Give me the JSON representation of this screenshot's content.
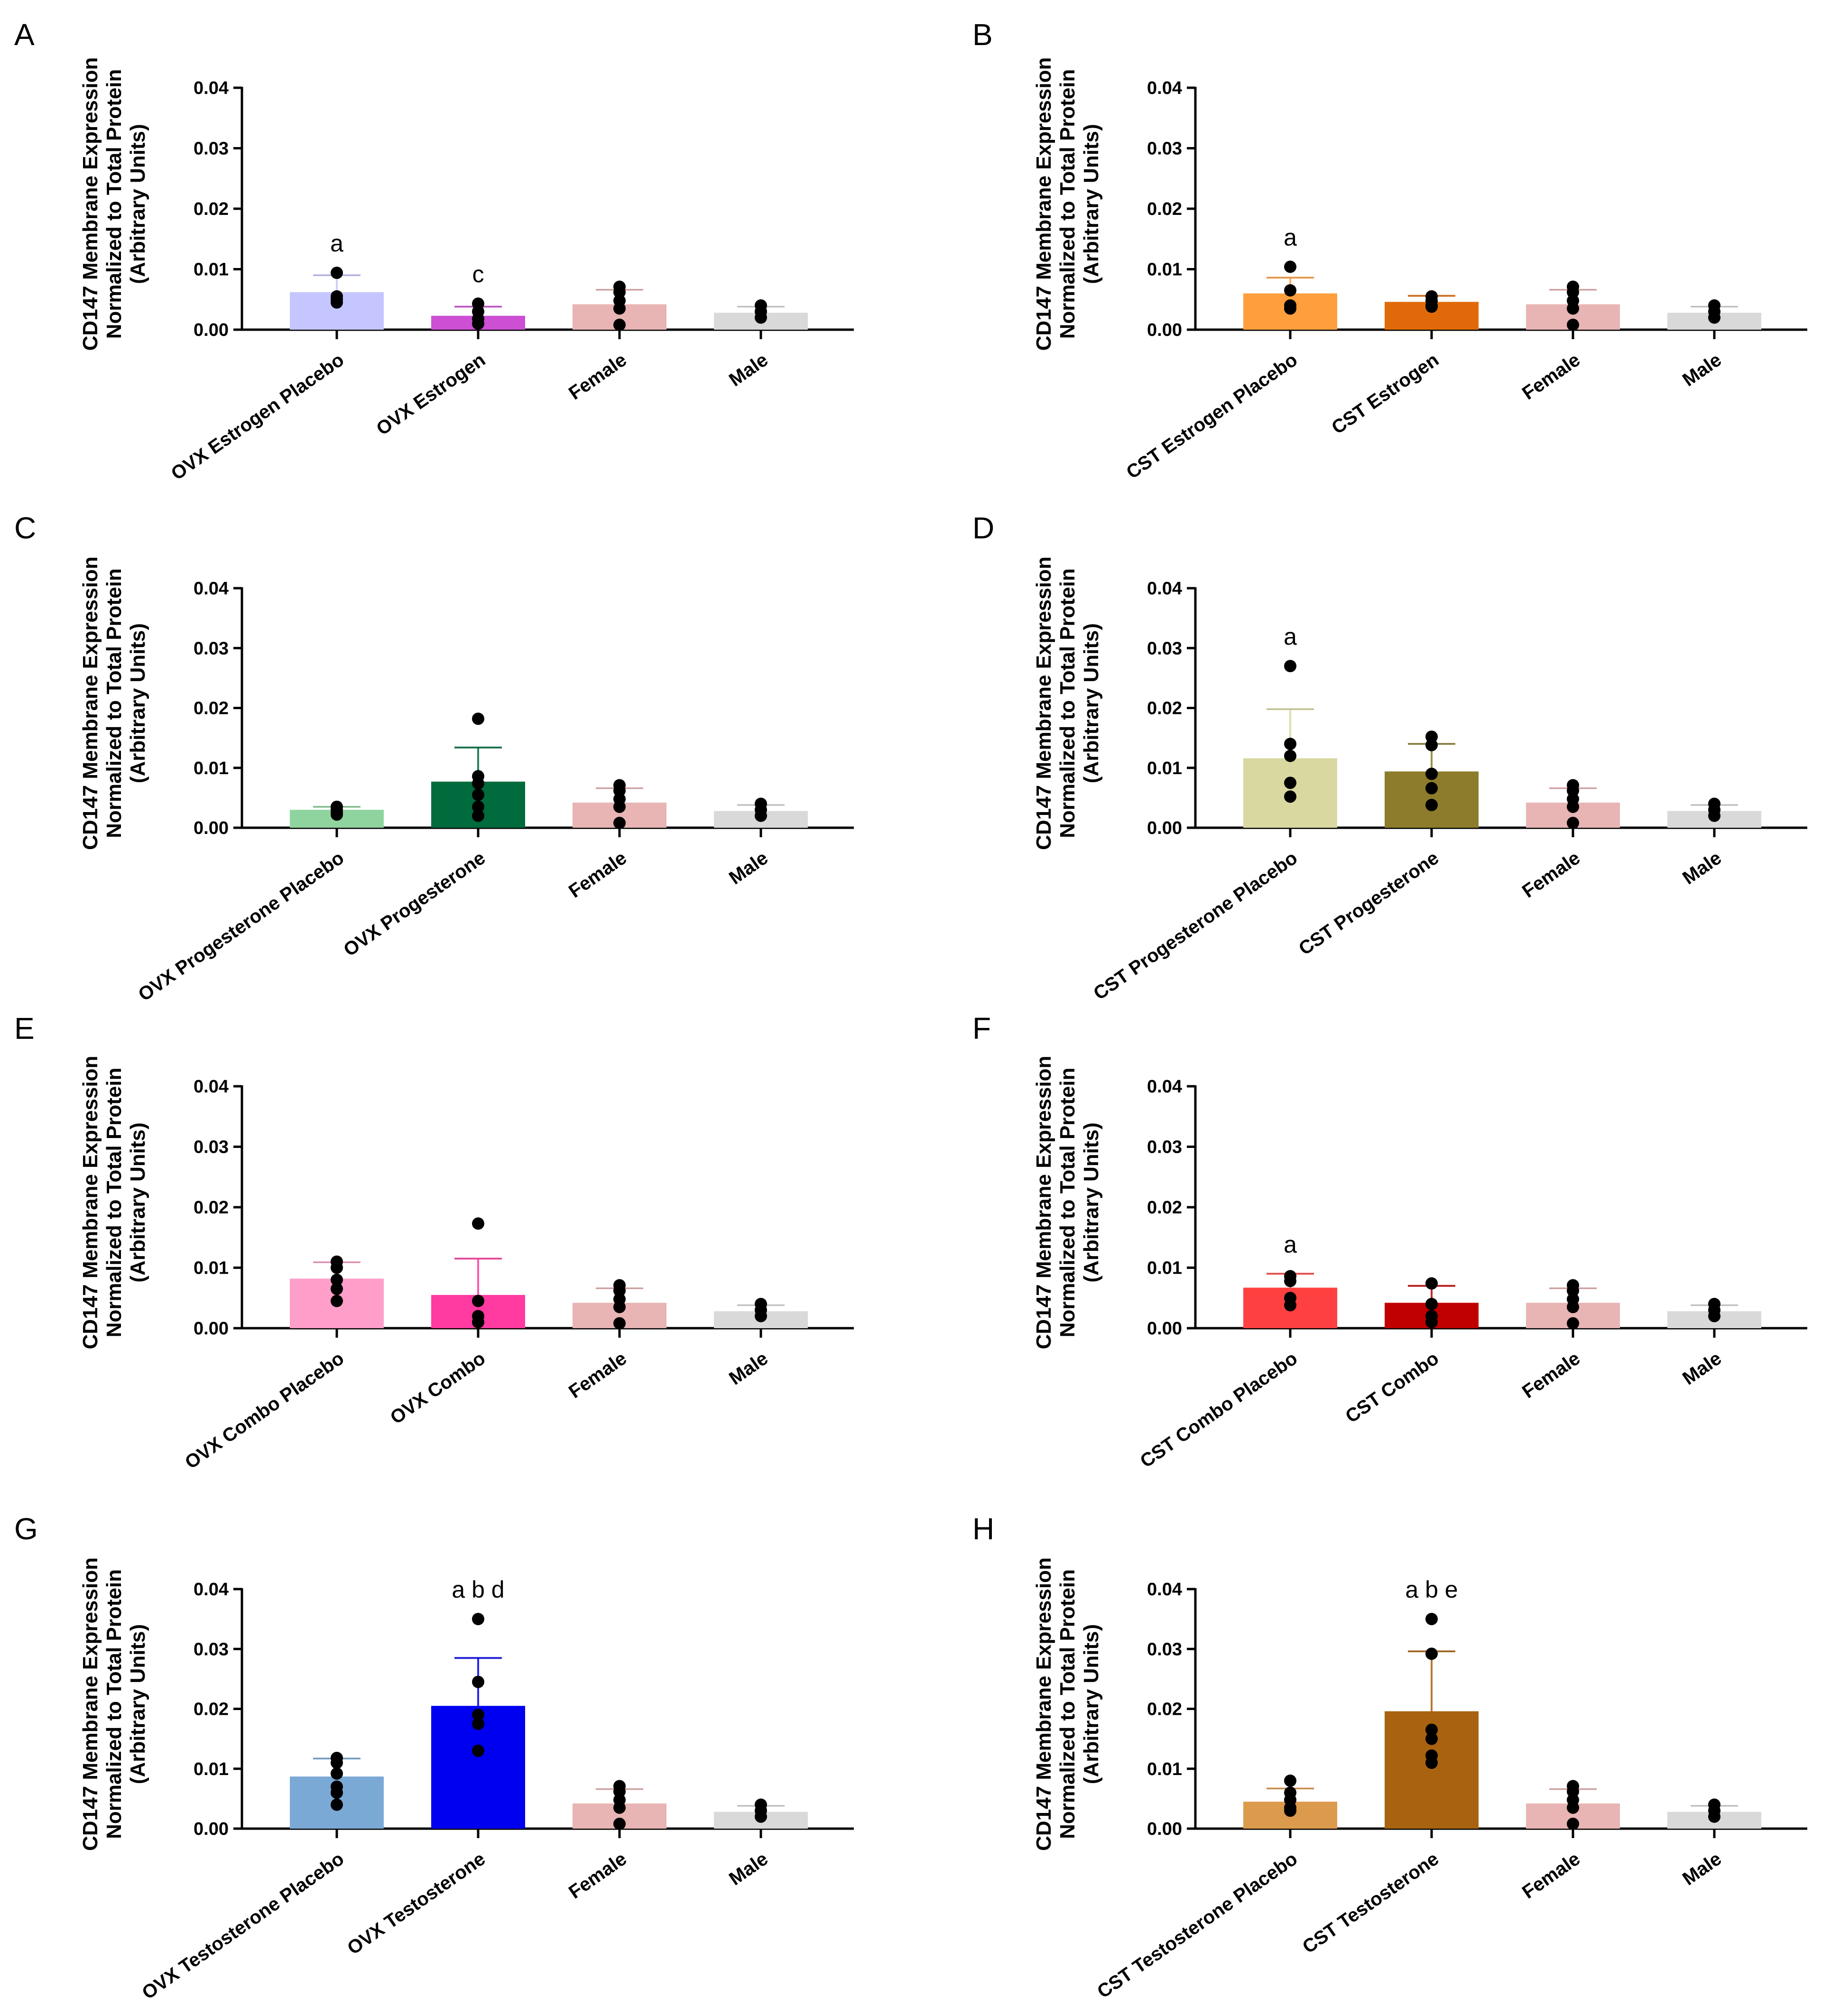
{
  "chart_data": [
    {
      "type": "bar",
      "panel": "A",
      "ylabel": [
        "CD147 Membrane Expression",
        "Normalized to Total Protein",
        "(Arbitrary Units)"
      ],
      "ylim": [
        0,
        0.04
      ],
      "yticks": [
        "0.00",
        "0.01",
        "0.02",
        "0.03",
        "0.04"
      ],
      "bars": [
        {
          "label": "OVX Estrogen Placebo",
          "mean": 0.0062,
          "err": 0.0028,
          "color": "#c5c6ff",
          "points": [
            0.0094,
            0.0055,
            0.0045,
            0.005
          ],
          "sig": "a"
        },
        {
          "label": "OVX Estrogen",
          "mean": 0.0023,
          "err": 0.0015,
          "color": "#cc4fd4",
          "points": [
            0.0043,
            0.003,
            0.001,
            0.0018
          ],
          "sig": "c"
        },
        {
          "label": "Female",
          "mean": 0.0042,
          "err": 0.0024,
          "color": "#e8b4b4",
          "points": [
            0.0071,
            0.0062,
            0.0048,
            0.0035,
            0.0008
          ],
          "sig": ""
        },
        {
          "label": "Male",
          "mean": 0.0028,
          "err": 0.001,
          "color": "#d9d9d9",
          "points": [
            0.004,
            0.003,
            0.002
          ],
          "sig": ""
        }
      ]
    },
    {
      "type": "bar",
      "panel": "B",
      "ylabel": [
        "CD147 Membrane Expression",
        "Normalized to Total Protein",
        "(Arbitrary Units)"
      ],
      "ylim": [
        0,
        0.04
      ],
      "yticks": [
        "0.00",
        "0.01",
        "0.02",
        "0.03",
        "0.04"
      ],
      "bars": [
        {
          "label": "CST Estrogen Placebo",
          "mean": 0.006,
          "err": 0.0026,
          "color": "#ff9e3d",
          "points": [
            0.0104,
            0.0065,
            0.004,
            0.0035
          ],
          "sig": "a"
        },
        {
          "label": "CST Estrogen",
          "mean": 0.0046,
          "err": 0.001,
          "color": "#e06a0a",
          "points": [
            0.0055,
            0.0048,
            0.004,
            0.0038
          ],
          "sig": ""
        },
        {
          "label": "Female",
          "mean": 0.0042,
          "err": 0.0024,
          "color": "#e8b4b4",
          "points": [
            0.0071,
            0.0062,
            0.0048,
            0.0035,
            0.0008
          ],
          "sig": ""
        },
        {
          "label": "Male",
          "mean": 0.0028,
          "err": 0.001,
          "color": "#d9d9d9",
          "points": [
            0.004,
            0.003,
            0.002
          ],
          "sig": ""
        }
      ]
    },
    {
      "type": "bar",
      "panel": "C",
      "ylabel": [
        "CD147 Membrane Expression",
        "Normalized to Total Protein",
        "(Arbitrary Units)"
      ],
      "ylim": [
        0,
        0.04
      ],
      "yticks": [
        "0.00",
        "0.01",
        "0.02",
        "0.03",
        "0.04"
      ],
      "bars": [
        {
          "label": "OVX Progesterone Placebo",
          "mean": 0.003,
          "err": 0.0005,
          "color": "#8fd49e",
          "points": [
            0.0035,
            0.003,
            0.0025,
            0.0022
          ],
          "sig": ""
        },
        {
          "label": "OVX Progesterone",
          "mean": 0.0077,
          "err": 0.0057,
          "color": "#006b3c",
          "points": [
            0.0182,
            0.0086,
            0.0074,
            0.0055,
            0.0035,
            0.002
          ],
          "sig": ""
        },
        {
          "label": "Female",
          "mean": 0.0042,
          "err": 0.0024,
          "color": "#e8b4b4",
          "points": [
            0.0071,
            0.0062,
            0.0048,
            0.0035,
            0.0008
          ],
          "sig": ""
        },
        {
          "label": "Male",
          "mean": 0.0028,
          "err": 0.001,
          "color": "#d9d9d9",
          "points": [
            0.004,
            0.003,
            0.002
          ],
          "sig": ""
        }
      ]
    },
    {
      "type": "bar",
      "panel": "D",
      "ylabel": [
        "CD147 Membrane Expression",
        "Normalized to Total Protein",
        "(Arbitrary Units)"
      ],
      "ylim": [
        0,
        0.04
      ],
      "yticks": [
        "0.00",
        "0.01",
        "0.02",
        "0.03",
        "0.04"
      ],
      "bars": [
        {
          "label": "CST Progesterone Placebo",
          "mean": 0.0116,
          "err": 0.0082,
          "color": "#d9d8a0",
          "points": [
            0.027,
            0.014,
            0.012,
            0.0075,
            0.0052
          ],
          "sig": "a"
        },
        {
          "label": "CST Progesterone",
          "mean": 0.0094,
          "err": 0.0046,
          "color": "#8c7c2c",
          "points": [
            0.0152,
            0.0138,
            0.009,
            0.0066,
            0.0038
          ],
          "sig": ""
        },
        {
          "label": "Female",
          "mean": 0.0042,
          "err": 0.0024,
          "color": "#e8b4b4",
          "points": [
            0.0071,
            0.0062,
            0.0048,
            0.0035,
            0.0008
          ],
          "sig": ""
        },
        {
          "label": "Male",
          "mean": 0.0028,
          "err": 0.001,
          "color": "#d9d9d9",
          "points": [
            0.004,
            0.003,
            0.002
          ],
          "sig": ""
        }
      ]
    },
    {
      "type": "bar",
      "panel": "E",
      "ylabel": [
        "CD147 Membrane Expression",
        "Normalized to Total Protein",
        "(Arbitrary Units)"
      ],
      "ylim": [
        0,
        0.04
      ],
      "yticks": [
        "0.00",
        "0.01",
        "0.02",
        "0.03",
        "0.04"
      ],
      "bars": [
        {
          "label": "OVX Combo Placebo",
          "mean": 0.0082,
          "err": 0.0027,
          "color": "#ff9ec9",
          "points": [
            0.011,
            0.01,
            0.008,
            0.0065,
            0.0045
          ],
          "sig": ""
        },
        {
          "label": "OVX Combo",
          "mean": 0.0055,
          "err": 0.006,
          "color": "#ff3aa0",
          "points": [
            0.0173,
            0.0045,
            0.002,
            0.001
          ],
          "sig": ""
        },
        {
          "label": "Female",
          "mean": 0.0042,
          "err": 0.0024,
          "color": "#e8b4b4",
          "points": [
            0.0071,
            0.0062,
            0.0048,
            0.0035,
            0.0008
          ],
          "sig": ""
        },
        {
          "label": "Male",
          "mean": 0.0028,
          "err": 0.001,
          "color": "#d9d9d9",
          "points": [
            0.004,
            0.003,
            0.002
          ],
          "sig": ""
        }
      ]
    },
    {
      "type": "bar",
      "panel": "F",
      "ylabel": [
        "CD147 Membrane Expression",
        "Normalized to Total Protein",
        "(Arbitrary Units)"
      ],
      "ylim": [
        0,
        0.04
      ],
      "yticks": [
        "0.00",
        "0.01",
        "0.02",
        "0.03",
        "0.04"
      ],
      "bars": [
        {
          "label": "CST Combo Placebo",
          "mean": 0.0067,
          "err": 0.0023,
          "color": "#ff4040",
          "points": [
            0.0086,
            0.0078,
            0.005,
            0.0038
          ],
          "sig": "a"
        },
        {
          "label": "CST Combo",
          "mean": 0.0042,
          "err": 0.0028,
          "color": "#c00000",
          "points": [
            0.0074,
            0.004,
            0.002,
            0.001
          ],
          "sig": ""
        },
        {
          "label": "Female",
          "mean": 0.0042,
          "err": 0.0024,
          "color": "#e8b4b4",
          "points": [
            0.0071,
            0.0062,
            0.0048,
            0.0035,
            0.0008
          ],
          "sig": ""
        },
        {
          "label": "Male",
          "mean": 0.0028,
          "err": 0.001,
          "color": "#d9d9d9",
          "points": [
            0.004,
            0.003,
            0.002
          ],
          "sig": ""
        }
      ]
    },
    {
      "type": "bar",
      "panel": "G",
      "ylabel": [
        "CD147 Membrane Expression",
        "Normalized to Total Protein",
        "(Arbitrary Units)"
      ],
      "ylim": [
        0,
        0.04
      ],
      "yticks": [
        "0.00",
        "0.01",
        "0.02",
        "0.03",
        "0.04"
      ],
      "bars": [
        {
          "label": "OVX Testosterone Placebo",
          "mean": 0.0087,
          "err": 0.003,
          "color": "#7ba9d6",
          "points": [
            0.0118,
            0.011,
            0.0092,
            0.007,
            0.006,
            0.004
          ],
          "sig": ""
        },
        {
          "label": "OVX Testosterone",
          "mean": 0.0205,
          "err": 0.008,
          "color": "#0000f0",
          "points": [
            0.035,
            0.0245,
            0.019,
            0.0175,
            0.013
          ],
          "sig": "a b d"
        },
        {
          "label": "Female",
          "mean": 0.0042,
          "err": 0.0024,
          "color": "#e8b4b4",
          "points": [
            0.0071,
            0.0062,
            0.0048,
            0.0035,
            0.0008
          ],
          "sig": ""
        },
        {
          "label": "Male",
          "mean": 0.0028,
          "err": 0.001,
          "color": "#d9d9d9",
          "points": [
            0.004,
            0.003,
            0.002
          ],
          "sig": ""
        }
      ]
    },
    {
      "type": "bar",
      "panel": "H",
      "ylabel": [
        "CD147 Membrane Expression",
        "Normalized to Total Protein",
        "(Arbitrary Units)"
      ],
      "ylim": [
        0,
        0.04
      ],
      "yticks": [
        "0.00",
        "0.01",
        "0.02",
        "0.03",
        "0.04"
      ],
      "bars": [
        {
          "label": "CST Testosterone Placebo",
          "mean": 0.0045,
          "err": 0.0022,
          "color": "#dc9a4c",
          "points": [
            0.008,
            0.006,
            0.0048,
            0.0035,
            0.003
          ],
          "sig": ""
        },
        {
          "label": "CST Testosterone",
          "mean": 0.0196,
          "err": 0.01,
          "color": "#a86210",
          "points": [
            0.035,
            0.0292,
            0.0165,
            0.015,
            0.0122,
            0.011
          ],
          "sig": "a b e"
        },
        {
          "label": "Female",
          "mean": 0.0042,
          "err": 0.0024,
          "color": "#e8b4b4",
          "points": [
            0.0071,
            0.0062,
            0.0048,
            0.0035,
            0.0008
          ],
          "sig": ""
        },
        {
          "label": "Male",
          "mean": 0.0028,
          "err": 0.001,
          "color": "#d9d9d9",
          "points": [
            0.004,
            0.003,
            0.002
          ],
          "sig": ""
        }
      ]
    }
  ]
}
